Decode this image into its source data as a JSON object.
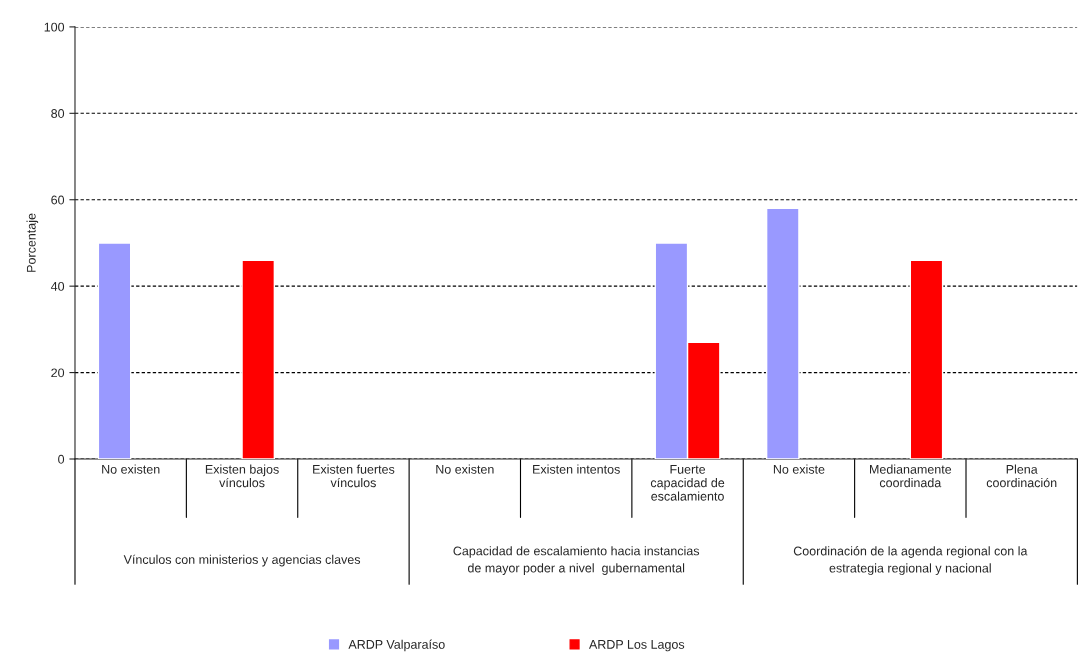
{
  "chart_data": {
    "type": "bar",
    "ylabel": "Porcentaje",
    "categories": [
      "No existen",
      "Existen bajos\nvínculos",
      "Existen fuertes\nvínculos",
      "No existen",
      "Existen intentos",
      "Fuerte\ncapacidad de\nescalamiento",
      "No existe",
      "Medianamente\ncoordinada",
      "Plena\ncoordinación"
    ],
    "series": [
      {
        "name": "ARDP Valparaíso",
        "color": "#9999ff",
        "values": [
          50,
          null,
          null,
          null,
          null,
          50,
          58,
          null,
          null
        ]
      },
      {
        "name": "ARDP Los Lagos",
        "color": "#ff0000",
        "values": [
          null,
          46,
          null,
          null,
          null,
          27,
          null,
          46,
          null
        ]
      }
    ],
    "annotations": [
      "Vínculos con ministerios y agencias claves",
      "Capacidad de escalamiento hacia instancias\nde mayor poder a nivel  gubernamental",
      "Coordinación de la agenda regional con la\nestrategia regional y nacional"
    ],
    "ylim": [
      0,
      100
    ],
    "yticks": [
      0,
      20,
      40,
      60,
      80,
      100
    ],
    "grid": "y",
    "legend": "bottom"
  }
}
